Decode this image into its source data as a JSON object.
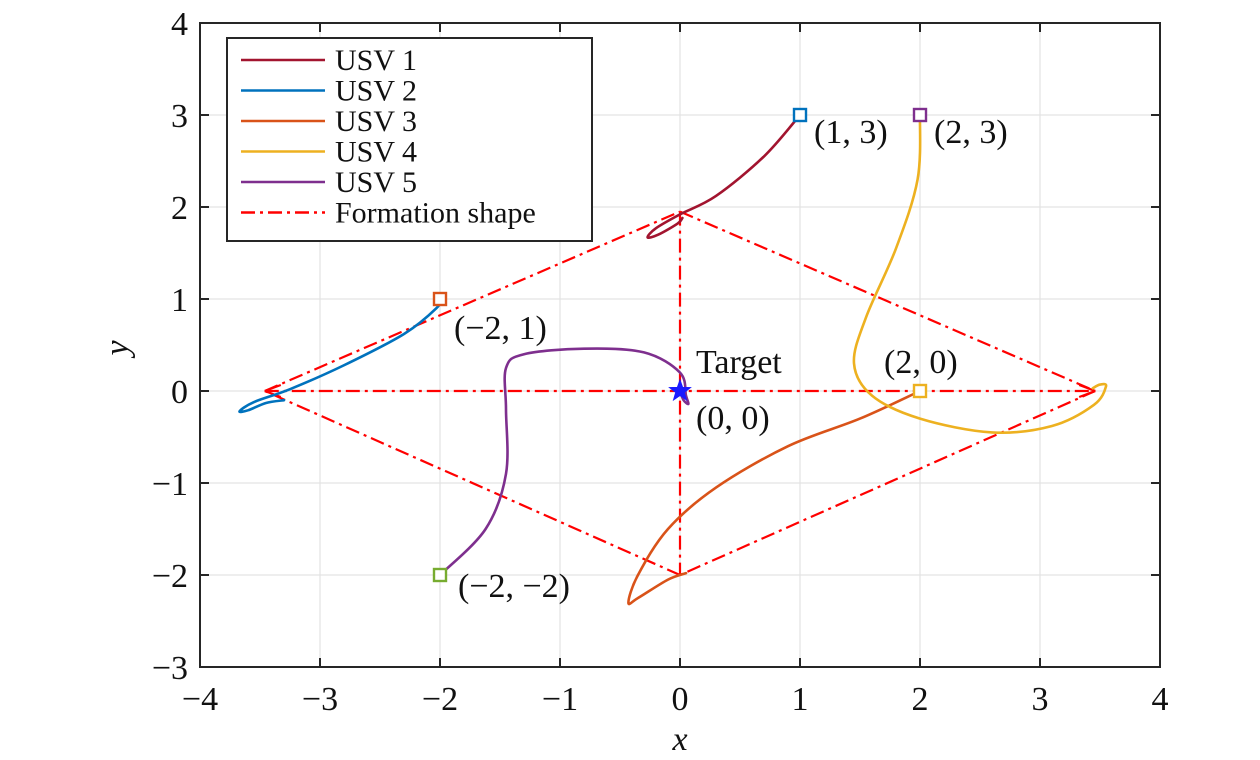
{
  "chart_data": {
    "type": "line",
    "xlabel": "x",
    "ylabel": "y",
    "xlim": [
      -4,
      4
    ],
    "ylim": [
      -3,
      4
    ],
    "xticks": [
      -4,
      -3,
      -2,
      -1,
      0,
      1,
      2,
      3,
      4
    ],
    "yticks": [
      -3,
      -2,
      -1,
      0,
      1,
      2,
      3,
      4
    ],
    "xtick_labels": [
      "−4",
      "−3",
      "−2",
      "−1",
      "0",
      "1",
      "2",
      "3",
      "4"
    ],
    "ytick_labels": [
      "−3",
      "−2",
      "−1",
      "0",
      "1",
      "2",
      "3",
      "4"
    ],
    "grid": true,
    "legend_position": "top-left",
    "series": [
      {
        "name": "USV 1",
        "color": "#A2142F",
        "style": "solid",
        "points": [
          [
            1.0,
            3.0
          ],
          [
            0.7,
            2.55
          ],
          [
            0.3,
            2.12
          ],
          [
            0.0,
            1.92
          ],
          [
            -0.2,
            1.77
          ],
          [
            -0.27,
            1.67
          ],
          [
            -0.18,
            1.7
          ],
          [
            -0.02,
            1.82
          ],
          [
            0.02,
            1.88
          ]
        ]
      },
      {
        "name": "USV 2",
        "color": "#0072BD",
        "style": "solid",
        "points": [
          [
            -2.0,
            1.0
          ],
          [
            -2.03,
            0.9
          ],
          [
            -2.3,
            0.62
          ],
          [
            -2.8,
            0.28
          ],
          [
            -3.25,
            0.02
          ],
          [
            -3.55,
            -0.12
          ],
          [
            -3.67,
            -0.22
          ],
          [
            -3.6,
            -0.21
          ],
          [
            -3.45,
            -0.13
          ],
          [
            -3.3,
            -0.1
          ]
        ]
      },
      {
        "name": "USV 3",
        "color": "#D95319",
        "style": "solid",
        "points": [
          [
            2.0,
            0.0
          ],
          [
            1.5,
            -0.3
          ],
          [
            0.9,
            -0.6
          ],
          [
            0.3,
            -1.05
          ],
          [
            -0.1,
            -1.5
          ],
          [
            -0.35,
            -2.0
          ],
          [
            -0.43,
            -2.3
          ],
          [
            -0.35,
            -2.25
          ],
          [
            -0.1,
            -2.05
          ],
          [
            0.05,
            -1.98
          ]
        ]
      },
      {
        "name": "USV 4",
        "color": "#EDB120",
        "style": "solid",
        "points": [
          [
            2.0,
            3.0
          ],
          [
            1.98,
            2.3
          ],
          [
            1.8,
            1.55
          ],
          [
            1.55,
            0.8
          ],
          [
            1.45,
            0.3
          ],
          [
            1.6,
            -0.05
          ],
          [
            2.0,
            -0.3
          ],
          [
            2.6,
            -0.45
          ],
          [
            3.1,
            -0.38
          ],
          [
            3.45,
            -0.15
          ],
          [
            3.55,
            0.05
          ],
          [
            3.5,
            0.07
          ],
          [
            3.44,
            0.03
          ]
        ]
      },
      {
        "name": "USV 5",
        "color": "#7E2F8E",
        "style": "solid",
        "points": [
          [
            -2.0,
            -2.0
          ],
          [
            -1.62,
            -1.5
          ],
          [
            -1.45,
            -0.9
          ],
          [
            -1.45,
            -0.2
          ],
          [
            -1.45,
            0.25
          ],
          [
            -1.3,
            0.4
          ],
          [
            -0.8,
            0.46
          ],
          [
            -0.3,
            0.42
          ],
          [
            0.0,
            0.2
          ],
          [
            0.05,
            -0.05
          ],
          [
            0.07,
            -0.14
          ],
          [
            0.03,
            -0.1
          ],
          [
            0.0,
            0.0
          ]
        ]
      },
      {
        "name": "Formation shape",
        "color": "#FF0000",
        "style": "dashdot",
        "segments": [
          [
            [
              -3.46,
              0
            ],
            [
              0,
              1.95
            ]
          ],
          [
            [
              0,
              1.95
            ],
            [
              3.46,
              0
            ]
          ],
          [
            [
              3.46,
              0
            ],
            [
              0,
              -2.0
            ]
          ],
          [
            [
              0,
              -2.0
            ],
            [
              -3.46,
              0
            ]
          ],
          [
            [
              -3.46,
              0
            ],
            [
              3.46,
              0
            ]
          ],
          [
            [
              0,
              1.95
            ],
            [
              0,
              -2.0
            ]
          ]
        ]
      }
    ],
    "markers": [
      {
        "x": 1,
        "y": 3,
        "color": "#0072BD",
        "label": "(1, 3)"
      },
      {
        "x": 2,
        "y": 3,
        "color": "#7E2F8E",
        "label": "(2, 3)"
      },
      {
        "x": -2,
        "y": 1,
        "color": "#D95319",
        "label": "(−2, 1)"
      },
      {
        "x": 2,
        "y": 0,
        "color": "#EDB120",
        "label": "(2, 0)"
      },
      {
        "x": -2,
        "y": -2,
        "color": "#77AC30",
        "label": "(−2, −2)"
      }
    ],
    "target": {
      "x": 0,
      "y": 0,
      "color": "#1A1AFF",
      "label": "Target",
      "coord_label": "(0, 0)"
    }
  }
}
